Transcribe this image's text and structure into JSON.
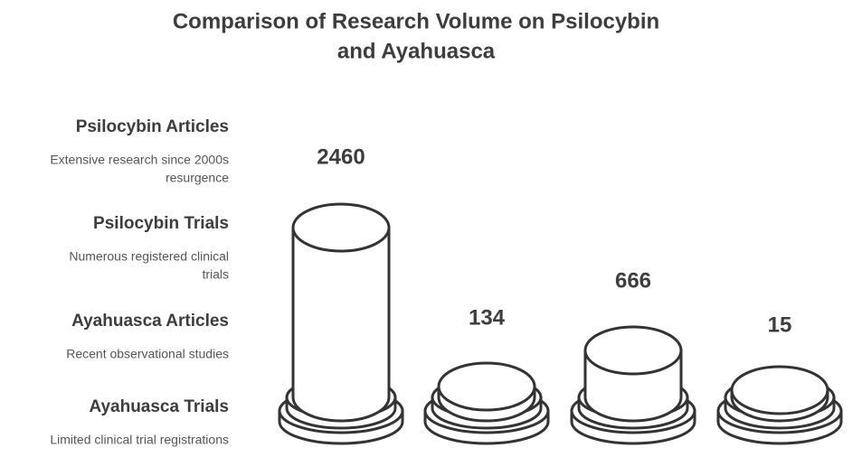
{
  "title": [
    "Comparison of Research Volume on Psilocybin",
    "and Ayahuasca"
  ],
  "items": [
    {
      "label": "Psilocybin Articles",
      "description": [
        "Extensive research since 2000s",
        "resurgence"
      ],
      "value": "2460"
    },
    {
      "label": "Psilocybin Trials",
      "description": [
        "Numerous registered clinical",
        "trials"
      ],
      "value": "134"
    },
    {
      "label": "Ayahuasca Articles",
      "description": [
        "Recent observational studies"
      ],
      "value": "666"
    },
    {
      "label": "Ayahuasca Trials",
      "description": [
        "Limited clinical trial registrations"
      ],
      "value": "15"
    }
  ]
}
